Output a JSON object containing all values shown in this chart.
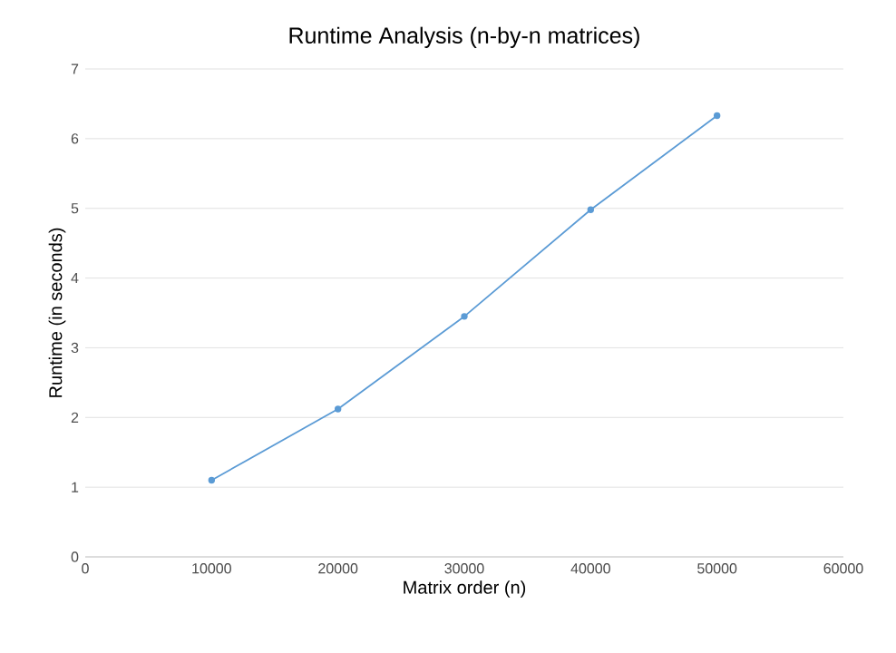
{
  "chart_data": {
    "type": "line",
    "title": "Runtime Analysis (n-by-n matrices)",
    "xlabel": "Matrix order (n)",
    "ylabel": "Runtime (in seconds)",
    "x": [
      10000,
      20000,
      30000,
      40000,
      50000
    ],
    "series": [
      {
        "color": "#5b9bd5",
        "values": [
          1.1,
          2.12,
          3.45,
          4.98,
          6.33
        ]
      }
    ],
    "xlim": [
      0,
      60000
    ],
    "xticks": [
      0,
      10000,
      20000,
      30000,
      40000,
      50000,
      60000
    ],
    "ylim": [
      0,
      7
    ],
    "yticks": [
      0,
      1,
      2,
      3,
      4,
      5,
      6,
      7
    ],
    "grid": "y",
    "marker": "circle",
    "line_style": "solid"
  }
}
